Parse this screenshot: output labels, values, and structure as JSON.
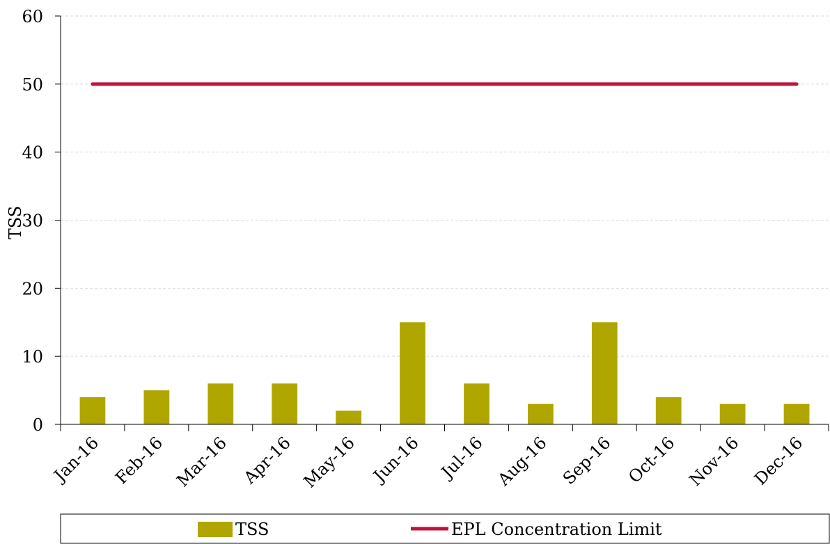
{
  "chart_data": {
    "type": "bar",
    "categories": [
      "Jan-16",
      "Feb-16",
      "Mar-16",
      "Apr-16",
      "May-16",
      "Jun-16",
      "Jul-16",
      "Aug-16",
      "Sep-16",
      "Oct-16",
      "Nov-16",
      "Dec-16"
    ],
    "series": [
      {
        "name": "TSS",
        "type": "bar",
        "values": [
          4,
          5,
          6,
          6,
          2,
          15,
          6,
          3,
          15,
          4,
          3,
          3
        ],
        "color": "#b0a600"
      },
      {
        "name": "EPL Concentration Limit",
        "type": "line",
        "values": [
          50,
          50,
          50,
          50,
          50,
          50,
          50,
          50,
          50,
          50,
          50,
          50
        ],
        "color": "#c0143c"
      }
    ],
    "title": "",
    "xlabel": "",
    "ylabel": "TSS",
    "ylim": [
      0,
      60
    ],
    "yticks": [
      0,
      10,
      20,
      30,
      40,
      50,
      60
    ],
    "grid": true,
    "legend": "bottom"
  }
}
